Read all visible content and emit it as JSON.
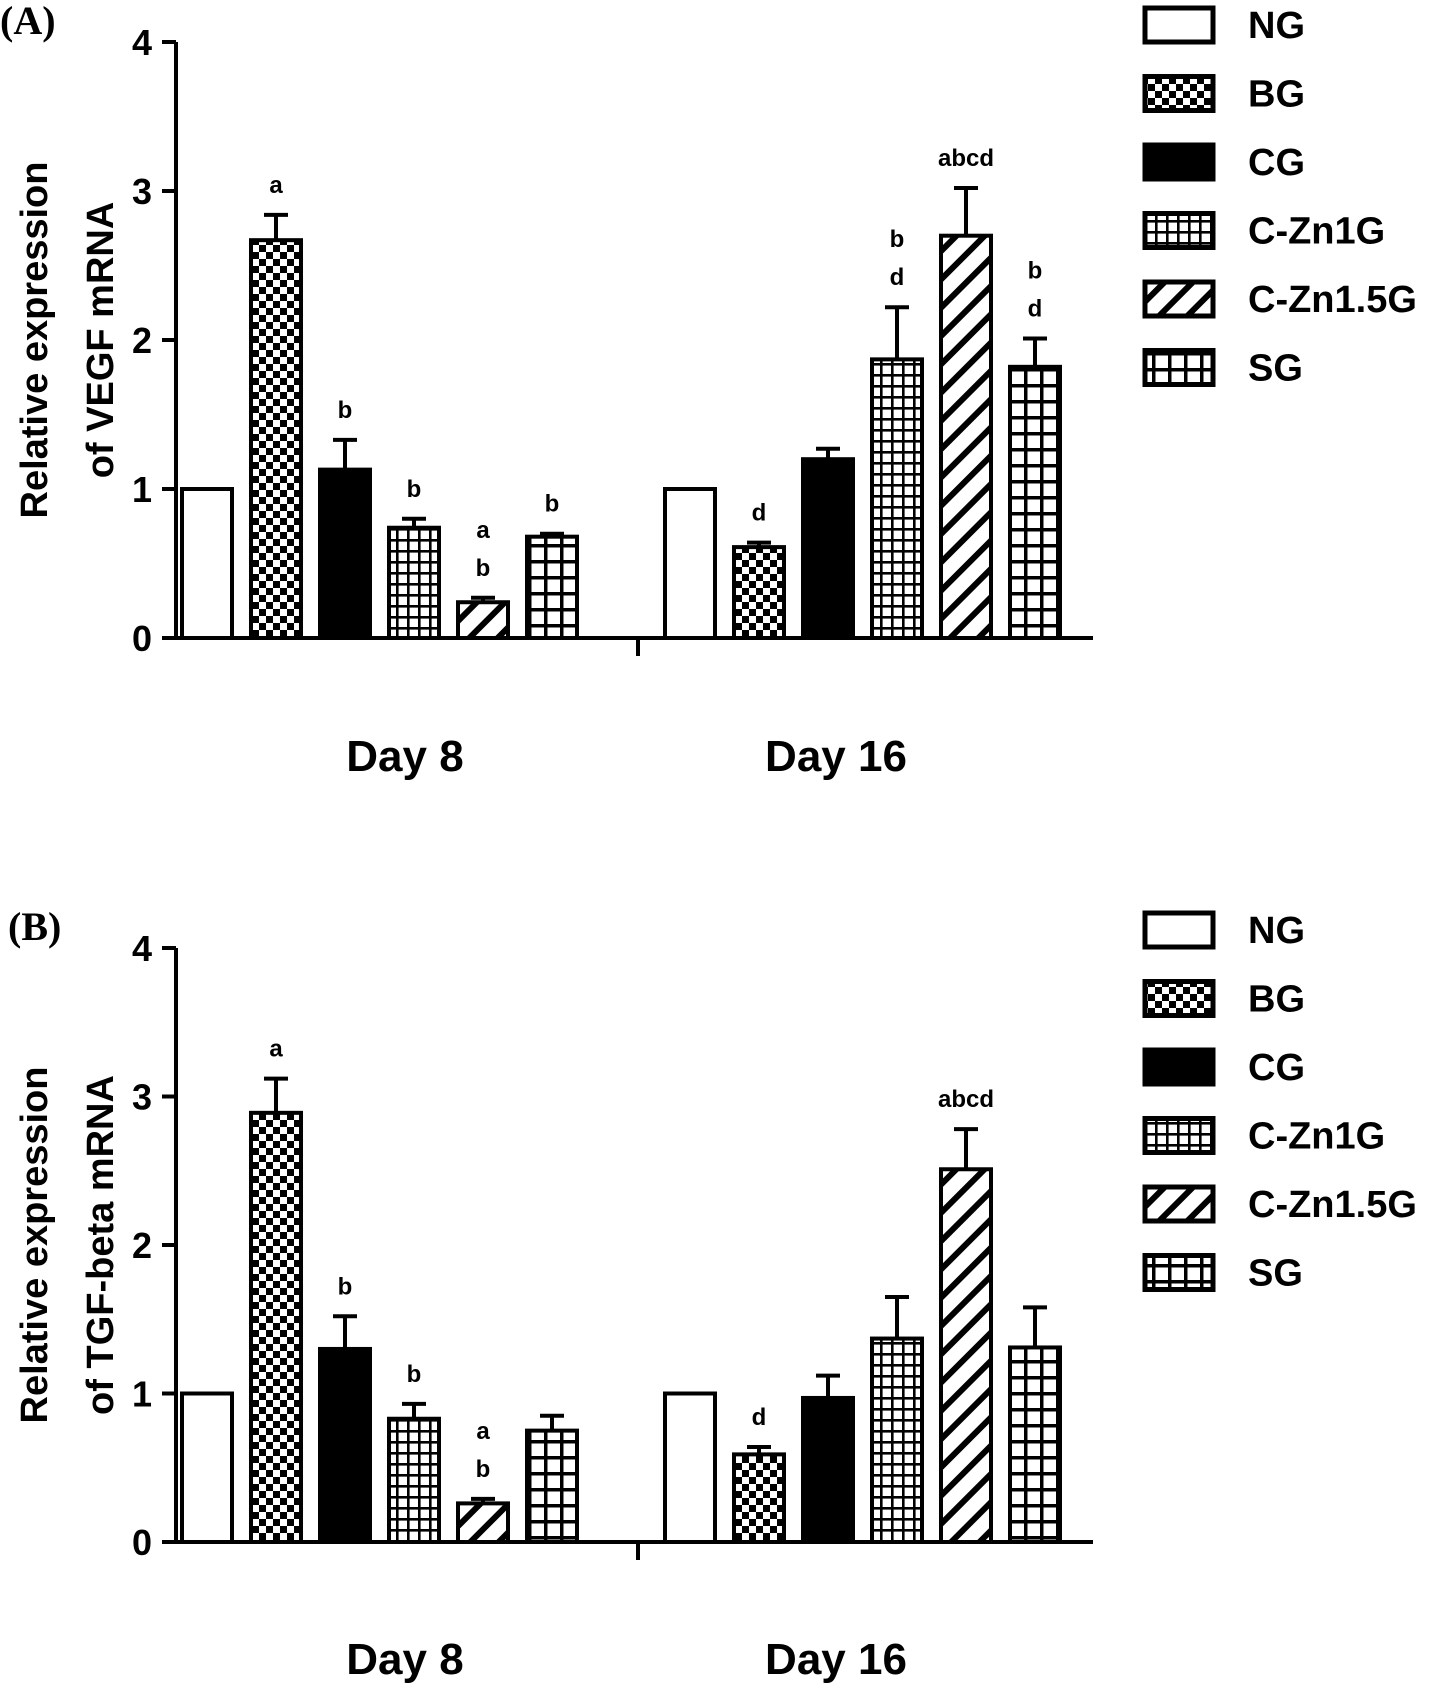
{
  "chart_data": [
    {
      "type": "bar",
      "panel_label": "(A)",
      "ylabel_line1": "Relative expression",
      "ylabel_line2": "of VEGF mRNA",
      "ylim": [
        0,
        4
      ],
      "yticks": [
        "0",
        "1",
        "2",
        "3",
        "4"
      ],
      "categories": [
        "Day 8",
        "Day 16"
      ],
      "series": [
        {
          "name": "NG",
          "pattern": "open",
          "values": [
            1.0,
            1.0
          ],
          "errors": [
            0,
            0
          ],
          "sig": [
            [],
            []
          ]
        },
        {
          "name": "BG",
          "pattern": "checker",
          "values": [
            2.67,
            0.61
          ],
          "errors": [
            0.17,
            0.03
          ],
          "sig": [
            [
              "a"
            ],
            [
              "d"
            ]
          ]
        },
        {
          "name": "CG",
          "pattern": "solid",
          "values": [
            1.13,
            1.2
          ],
          "errors": [
            0.2,
            0.07
          ],
          "sig": [
            [
              "b"
            ],
            []
          ]
        },
        {
          "name": "C-Zn1G",
          "pattern": "fine-grid",
          "values": [
            0.74,
            1.87
          ],
          "errors": [
            0.06,
            0.35
          ],
          "sig": [
            [
              "b"
            ],
            [
              "b",
              "d"
            ]
          ]
        },
        {
          "name": "C-Zn1.5G",
          "pattern": "diagonal",
          "values": [
            0.24,
            2.7
          ],
          "errors": [
            0.03,
            0.32
          ],
          "sig": [
            [
              "a",
              "b"
            ],
            [
              "abcd"
            ]
          ]
        },
        {
          "name": "SG",
          "pattern": "coarse-grid",
          "values": [
            0.68,
            1.82
          ],
          "errors": [
            0.02,
            0.19
          ],
          "sig": [
            [
              "b"
            ],
            [
              "b",
              "d"
            ]
          ]
        }
      ]
    },
    {
      "type": "bar",
      "panel_label": "(B)",
      "ylabel_line1": "Relative expression",
      "ylabel_line2": "of TGF-beta mRNA",
      "ylim": [
        0,
        4
      ],
      "yticks": [
        "0",
        "1",
        "2",
        "3",
        "4"
      ],
      "categories": [
        "Day 8",
        "Day 16"
      ],
      "series": [
        {
          "name": "NG",
          "pattern": "open",
          "values": [
            1.0,
            1.0
          ],
          "errors": [
            0,
            0
          ],
          "sig": [
            [],
            []
          ]
        },
        {
          "name": "BG",
          "pattern": "checker",
          "values": [
            2.89,
            0.59
          ],
          "errors": [
            0.23,
            0.05
          ],
          "sig": [
            [
              "a"
            ],
            [
              "d"
            ]
          ]
        },
        {
          "name": "CG",
          "pattern": "solid",
          "values": [
            1.3,
            0.97
          ],
          "errors": [
            0.22,
            0.15
          ],
          "sig": [
            [
              "b"
            ],
            []
          ]
        },
        {
          "name": "C-Zn1G",
          "pattern": "fine-grid",
          "values": [
            0.83,
            1.37
          ],
          "errors": [
            0.1,
            0.28
          ],
          "sig": [
            [
              "b"
            ],
            []
          ]
        },
        {
          "name": "C-Zn1.5G",
          "pattern": "diagonal",
          "values": [
            0.26,
            2.51
          ],
          "errors": [
            0.03,
            0.27
          ],
          "sig": [
            [
              "a",
              "b"
            ],
            [
              "abcd"
            ]
          ]
        },
        {
          "name": "SG",
          "pattern": "coarse-grid",
          "values": [
            0.75,
            1.31
          ],
          "errors": [
            0.1,
            0.27
          ],
          "sig": [
            [],
            []
          ]
        }
      ]
    }
  ]
}
